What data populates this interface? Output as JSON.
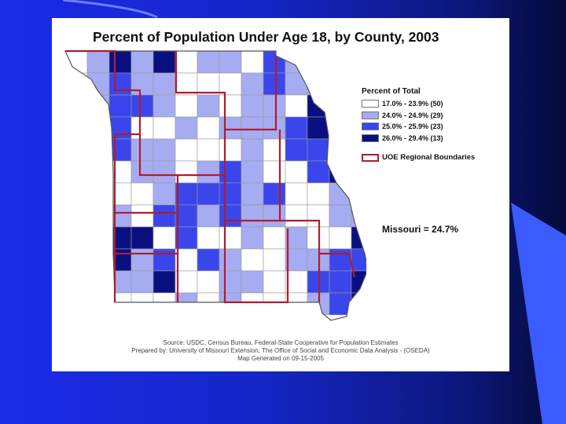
{
  "slide": {
    "background_colors": [
      "#1a2ce8",
      "#0c1880",
      "#050a3a"
    ],
    "accent_color": "#3355ff"
  },
  "map": {
    "title": "Percent of Population Under Age 18, by County, 2003",
    "state_average": "Missouri = 24.7%",
    "boundary_color": "#b01c2e"
  },
  "legend": {
    "title": "Percent of Total",
    "classes": [
      {
        "label": "17.0% - 23.9% (50)",
        "color": "#ffffff"
      },
      {
        "label": "24.0% - 24.9% (29)",
        "color": "#a6acf2"
      },
      {
        "label": "25.0% - 25.9% (23)",
        "color": "#3a46ec"
      },
      {
        "label": "26.0% - 29.4% (13)",
        "color": "#0a0f80"
      }
    ],
    "boundary_label": "UOE Regional Boundaries"
  },
  "source": {
    "line1": "Source: USDC, Census Bureau, Federal-State Cooperative for Population Estimates",
    "line2": "Prepared by: University of Missouri Extension, The Office of Social and Economic Data Analysis - (OSEDA)",
    "line3": "Map Generated on 09-15-2005"
  }
}
